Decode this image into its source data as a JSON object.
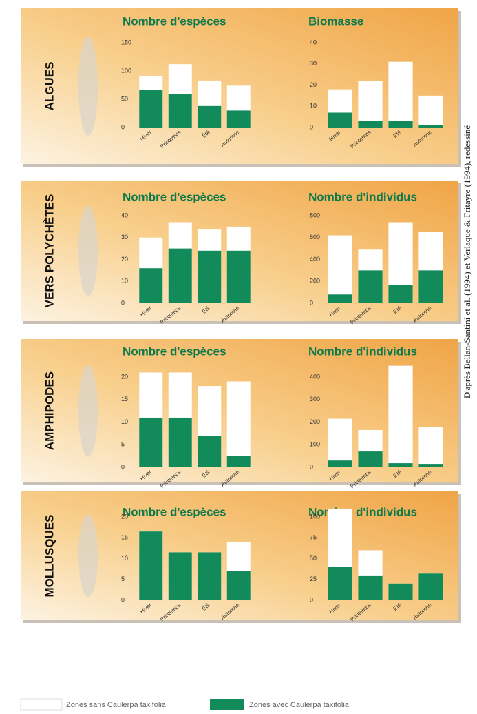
{
  "panels": [
    {
      "label": "ALGUES"
    },
    {
      "label": "VERS POLYCHÈTES"
    },
    {
      "label": "AMPHIPODES"
    },
    {
      "label": "MOLLUSQUES"
    }
  ],
  "legend": [
    {
      "name": "Zones sans Caulerpa taxifolia",
      "color": "#ffffff"
    },
    {
      "name": "Zones avec Caulerpa taxifolia",
      "color": "#138a5a"
    }
  ],
  "source": "D'après Bellan-Santini et al. (1994) et Verlaque & Fritayre (1994), redessiné",
  "chart_data": [
    {
      "type": "bar",
      "title": "Nombre d'espèces",
      "categories": [
        "Hiver",
        "Printemps",
        "Été",
        "Automne"
      ],
      "series": [
        {
          "color": "#ffffff",
          "values": [
            91,
            112,
            83,
            74
          ]
        },
        {
          "color": "#138a5a",
          "values": [
            67,
            59,
            38,
            30
          ]
        }
      ],
      "ylim": [
        0,
        150
      ],
      "yticks": [
        0,
        50,
        100,
        150
      ]
    },
    {
      "type": "bar",
      "title": "Biomasse",
      "categories": [
        "Hiver",
        "Printemps",
        "Été",
        "Automne"
      ],
      "series": [
        {
          "color": "#ffffff",
          "values": [
            18,
            22,
            31,
            15
          ]
        },
        {
          "color": "#138a5a",
          "values": [
            7,
            3,
            3,
            1
          ]
        }
      ],
      "ylim": [
        0,
        40
      ],
      "yticks": [
        0,
        10,
        20,
        30,
        40
      ]
    },
    {
      "type": "bar",
      "title": "Nombre d'espèces",
      "categories": [
        "Hiver",
        "Printemps",
        "Été",
        "Automne"
      ],
      "series": [
        {
          "color": "#ffffff",
          "values": [
            30,
            37,
            34,
            35
          ]
        },
        {
          "color": "#138a5a",
          "values": [
            16,
            25,
            24,
            24
          ]
        }
      ],
      "ylim": [
        0,
        40
      ],
      "yticks": [
        0,
        10,
        20,
        30,
        40
      ]
    },
    {
      "type": "bar",
      "title": "Nombre d'individus",
      "categories": [
        "Hiver",
        "Printemps",
        "Été",
        "Automne"
      ],
      "series": [
        {
          "color": "#ffffff",
          "values": [
            620,
            490,
            740,
            650
          ]
        },
        {
          "color": "#138a5a",
          "values": [
            80,
            300,
            170,
            300
          ]
        }
      ],
      "ylim": [
        0,
        800
      ],
      "yticks": [
        0,
        200,
        400,
        600,
        800
      ]
    },
    {
      "type": "bar",
      "title": "Nombre d'espèces",
      "categories": [
        "Hiver",
        "Printemps",
        "Été",
        "Automne"
      ],
      "series": [
        {
          "color": "#ffffff",
          "values": [
            21,
            21,
            18,
            19
          ]
        },
        {
          "color": "#138a5a",
          "values": [
            11,
            11,
            7,
            2.5
          ]
        }
      ],
      "ylim": [
        0,
        20
      ],
      "yticks": [
        0,
        5,
        10,
        15,
        20
      ]
    },
    {
      "type": "bar",
      "title": "Nombre d'individus",
      "categories": [
        "Hiver",
        "Printemps",
        "Été",
        "Automne"
      ],
      "series": [
        {
          "color": "#ffffff",
          "values": [
            215,
            165,
            450,
            180
          ]
        },
        {
          "color": "#138a5a",
          "values": [
            30,
            70,
            18,
            15
          ]
        }
      ],
      "ylim": [
        0,
        400
      ],
      "yticks": [
        0,
        100,
        200,
        300,
        400
      ]
    },
    {
      "type": "bar",
      "title": "Nombre d'espèces",
      "categories": [
        "Hiver",
        "Printemps",
        "Été",
        "Automne"
      ],
      "series": [
        {
          "color": "#ffffff",
          "values": [
            16.5,
            11.5,
            11.5,
            14
          ]
        },
        {
          "color": "#138a5a",
          "values": [
            16.5,
            11.5,
            11.5,
            7
          ]
        }
      ],
      "ylim": [
        0,
        20
      ],
      "yticks": [
        0,
        5,
        10,
        15,
        20
      ]
    },
    {
      "type": "bar",
      "title": "Nombre d'individus",
      "categories": [
        "Hiver",
        "Printemps",
        "Été",
        "Automne"
      ],
      "series": [
        {
          "color": "#ffffff",
          "values": [
            110,
            60,
            20,
            32
          ]
        },
        {
          "color": "#138a5a",
          "values": [
            40,
            29,
            20,
            32
          ]
        }
      ],
      "ylim": [
        0,
        100
      ],
      "yticks": [
        0,
        25,
        50,
        75,
        100
      ]
    }
  ]
}
